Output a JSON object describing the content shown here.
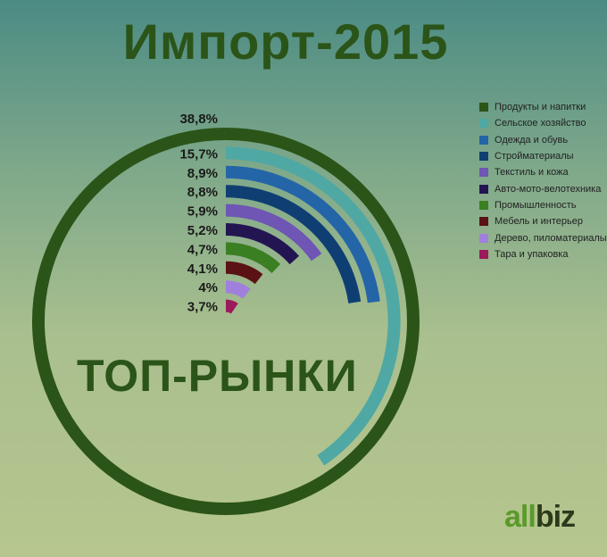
{
  "title": "Импорт-2015",
  "center_label": "ТОП-РЫНКИ",
  "logo": {
    "part1": "all",
    "part2": "biz"
  },
  "chart_data": {
    "type": "radial-bar",
    "title": "Импорт-2015",
    "scale_max_percent": 38.8,
    "series": [
      {
        "name": "Продукты и напитки",
        "value": 38.8,
        "label": "38,8%",
        "color": "#2b5418"
      },
      {
        "name": "Сельское хозяйство",
        "value": 15.7,
        "label": "15,7%",
        "color": "#4fa8a4"
      },
      {
        "name": "Одежда и обувь",
        "value": 8.9,
        "label": "8,9%",
        "color": "#2465a8"
      },
      {
        "name": "Стройматериалы",
        "value": 8.8,
        "label": "8,8%",
        "color": "#0f3f72"
      },
      {
        "name": "Текстиль и кожа",
        "value": 5.9,
        "label": "5,9%",
        "color": "#6f55b4"
      },
      {
        "name": "Авто-мото-велотехника",
        "value": 5.2,
        "label": "5,2%",
        "color": "#231552"
      },
      {
        "name": "Промышленность",
        "value": 4.7,
        "label": "4,7%",
        "color": "#3a7f22"
      },
      {
        "name": "Мебель и интерьер",
        "value": 4.1,
        "label": "4,1%",
        "color": "#5a1214"
      },
      {
        "name": "Дерево, пиломатериалы",
        "value": 4.0,
        "label": "4%",
        "color": "#a080dc"
      },
      {
        "name": "Тара и упаковка",
        "value": 3.7,
        "label": "3,7%",
        "color": "#9a1a5a"
      }
    ],
    "legend_position": "top-right"
  }
}
